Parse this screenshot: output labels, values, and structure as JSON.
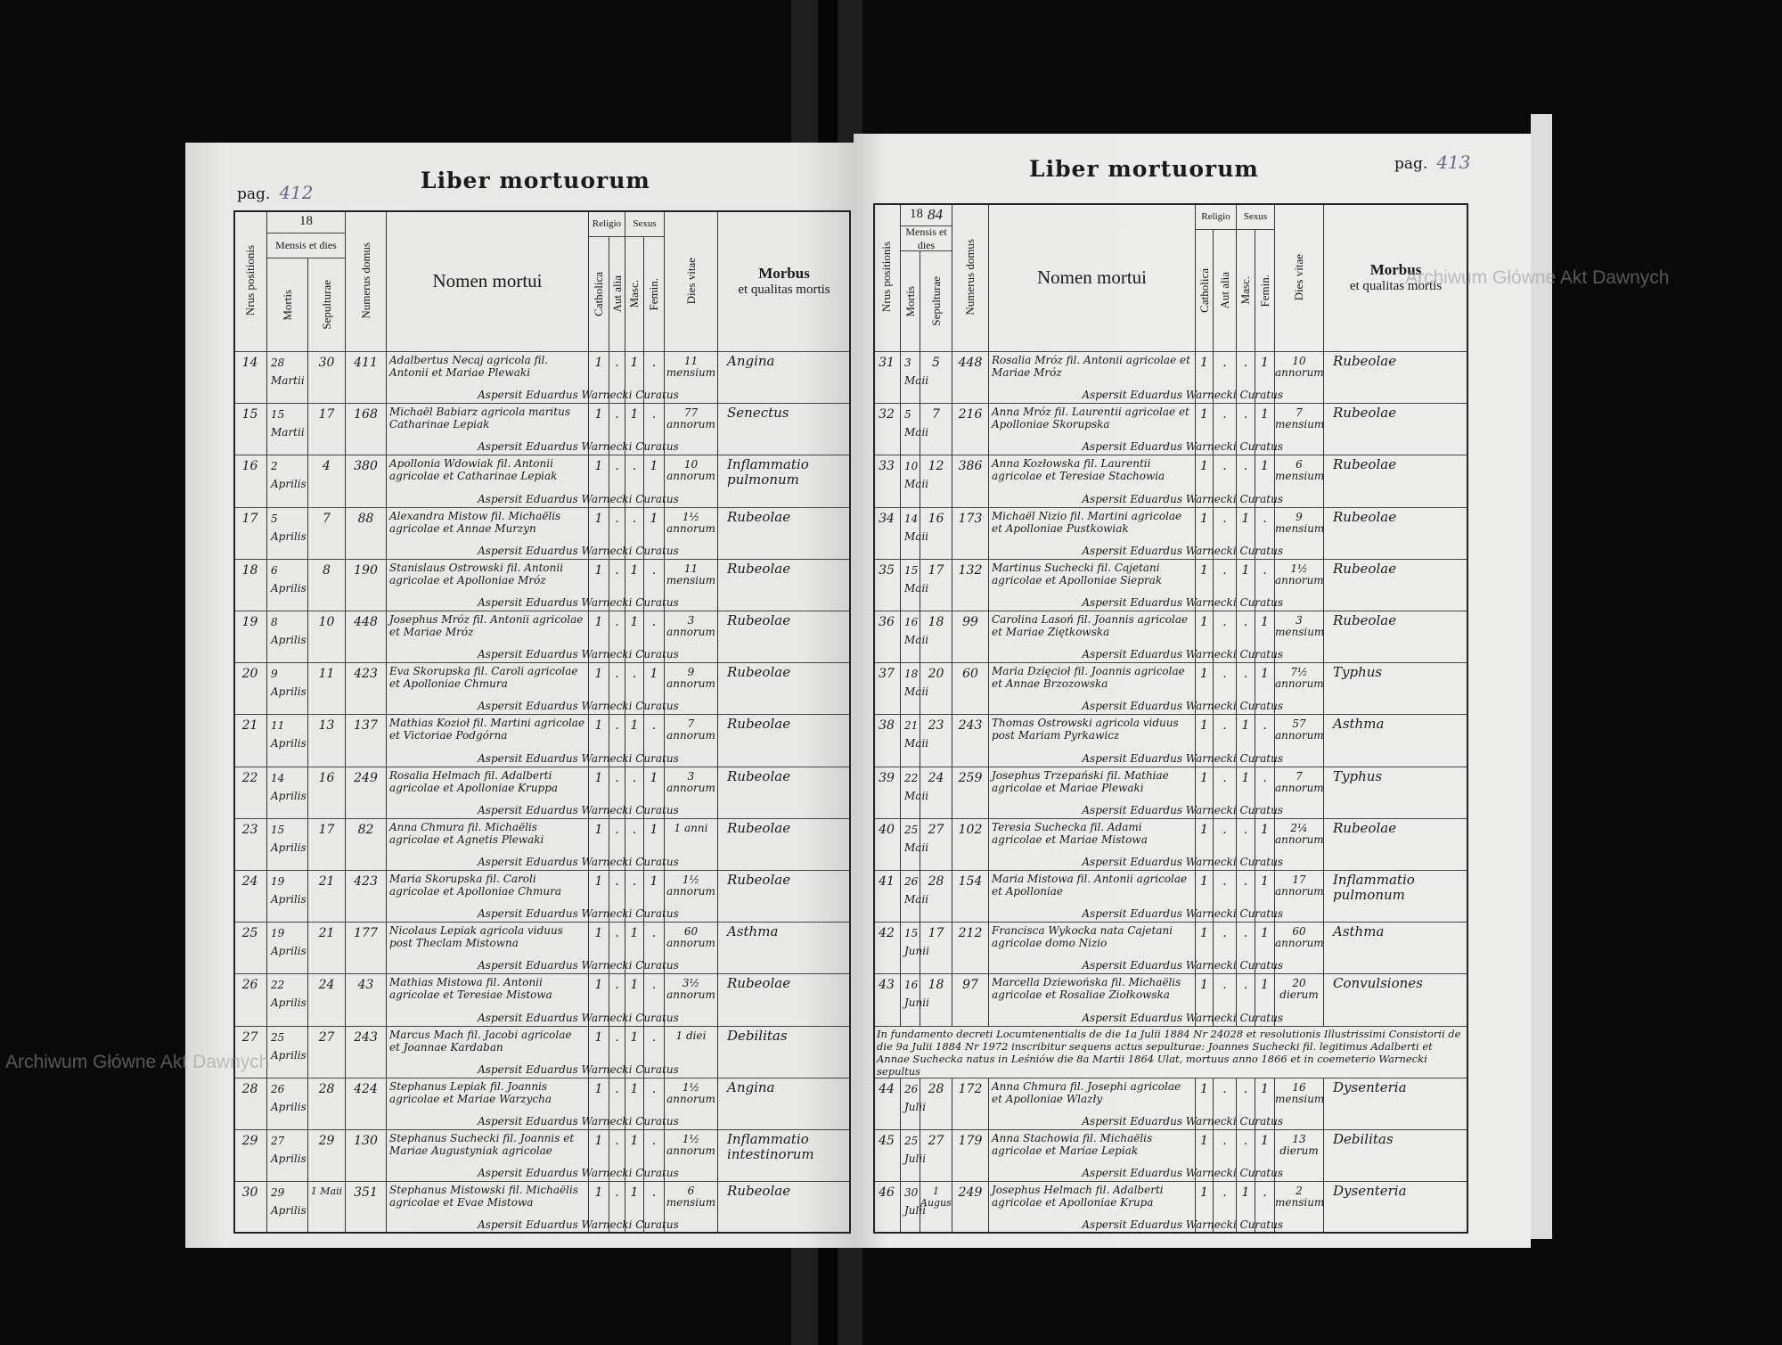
{
  "book_title": "Liber mortuorum",
  "left_page": {
    "pag_label": "pag.",
    "page_number": "412",
    "year_prefix": "18",
    "year_suffix": ""
  },
  "right_page": {
    "pag_label": "pag.",
    "page_number": "413",
    "year_prefix": "18",
    "year_suffix": "84"
  },
  "watermark": "Archiwum Główne Akt Dawnych",
  "headers": {
    "nrus": "Nrus positionis",
    "mensis": "Mensis et dies",
    "mortis": "Mortis",
    "sepulturae": "Sepulturae",
    "numerus": "Numerus domus",
    "nomen": "Nomen mortui",
    "religio": "Religio",
    "catholica": "Catholica",
    "aut_alia": "Aut alia",
    "sexus": "Sexus",
    "masc": "Masc.",
    "femin": "Femin.",
    "dies_vitae": "Dies vitae",
    "morbus": "Morbus",
    "morbus_sub": "et qualitas mortis"
  },
  "signature": "Aspersit Eduardus Warnecki Curatus",
  "left_rows": [
    {
      "nr": "14",
      "mortis": "28 Martii",
      "sep": "30",
      "domus": "411",
      "nomen": "Adalbertus Necaj agricola fil. Antonii et Mariae Plewaki",
      "cath": "1",
      "alia": ".",
      "masc": "1",
      "fem": ".",
      "dies": "11 mensium",
      "morbus": "Angina"
    },
    {
      "nr": "15",
      "mortis": "15 Martii",
      "sep": "17",
      "domus": "168",
      "nomen": "Michaël Babiarz agricola maritus Catharinae Lepiak",
      "cath": "1",
      "alia": ".",
      "masc": "1",
      "fem": ".",
      "dies": "77 annorum",
      "morbus": "Senectus"
    },
    {
      "nr": "16",
      "mortis": "2 Aprilis",
      "sep": "4",
      "domus": "380",
      "nomen": "Apollonia Wdowiak fil. Antonii agricolae et Catharinae Lepiak",
      "cath": "1",
      "alia": ".",
      "masc": ".",
      "fem": "1",
      "dies": "10 annorum",
      "morbus": "Inflammatio pulmonum"
    },
    {
      "nr": "17",
      "mortis": "5 Aprilis",
      "sep": "7",
      "domus": "88",
      "nomen": "Alexandra Mistow fil. Michaëlis agricolae et Annae Murzyn",
      "cath": "1",
      "alia": ".",
      "masc": ".",
      "fem": "1",
      "dies": "1½ annorum",
      "morbus": "Rubeolae"
    },
    {
      "nr": "18",
      "mortis": "6 Aprilis",
      "sep": "8",
      "domus": "190",
      "nomen": "Stanislaus Ostrowski fil. Antonii agricolae et Apolloniae Mróz",
      "cath": "1",
      "alia": ".",
      "masc": "1",
      "fem": ".",
      "dies": "11 mensium",
      "morbus": "Rubeolae"
    },
    {
      "nr": "19",
      "mortis": "8 Aprilis",
      "sep": "10",
      "domus": "448",
      "nomen": "Josephus Mróz fil. Antonii agricolae et Mariae Mróz",
      "cath": "1",
      "alia": ".",
      "masc": "1",
      "fem": ".",
      "dies": "3 annorum",
      "morbus": "Rubeolae"
    },
    {
      "nr": "20",
      "mortis": "9 Aprilis",
      "sep": "11",
      "domus": "423",
      "nomen": "Eva Skorupska fil. Caroli agricolae et Apolloniae Chmura",
      "cath": "1",
      "alia": ".",
      "masc": ".",
      "fem": "1",
      "dies": "9 annorum",
      "morbus": "Rubeolae"
    },
    {
      "nr": "21",
      "mortis": "11 Aprilis",
      "sep": "13",
      "domus": "137",
      "nomen": "Mathias Kozioł fil. Martini agricolae et Victoriae Podgórna",
      "cath": "1",
      "alia": ".",
      "masc": "1",
      "fem": ".",
      "dies": "7 annorum",
      "morbus": "Rubeolae"
    },
    {
      "nr": "22",
      "mortis": "14 Aprilis",
      "sep": "16",
      "domus": "249",
      "nomen": "Rosalia Helmach fil. Adalberti agricolae et Apolloniae Kruppa",
      "cath": "1",
      "alia": ".",
      "masc": ".",
      "fem": "1",
      "dies": "3 annorum",
      "morbus": "Rubeolae"
    },
    {
      "nr": "23",
      "mortis": "15 Aprilis",
      "sep": "17",
      "domus": "82",
      "nomen": "Anna Chmura fil. Michaëlis agricolae et Agnetis Plewaki",
      "cath": "1",
      "alia": ".",
      "masc": ".",
      "fem": "1",
      "dies": "1 anni",
      "morbus": "Rubeolae"
    },
    {
      "nr": "24",
      "mortis": "19 Aprilis",
      "sep": "21",
      "domus": "423",
      "nomen": "Maria Skorupska fil. Caroli agricolae et Apolloniae Chmura",
      "cath": "1",
      "alia": ".",
      "masc": ".",
      "fem": "1",
      "dies": "1½ annorum",
      "morbus": "Rubeolae"
    },
    {
      "nr": "25",
      "mortis": "19 Aprilis",
      "sep": "21",
      "domus": "177",
      "nomen": "Nicolaus Lepiak agricola viduus post Theclam Mistowna",
      "cath": "1",
      "alia": ".",
      "masc": "1",
      "fem": ".",
      "dies": "60 annorum",
      "morbus": "Asthma"
    },
    {
      "nr": "26",
      "mortis": "22 Aprilis",
      "sep": "24",
      "domus": "43",
      "nomen": "Mathias Mistowa fil. Antonii agricolae et Teresiae Mistowa",
      "cath": "1",
      "alia": ".",
      "masc": "1",
      "fem": ".",
      "dies": "3½ annorum",
      "morbus": "Rubeolae"
    },
    {
      "nr": "27",
      "mortis": "25 Aprilis",
      "sep": "27",
      "domus": "243",
      "nomen": "Marcus Mach fil. Jacobi agricolae et Joannae Kardaban",
      "cath": "1",
      "alia": ".",
      "masc": "1",
      "fem": ".",
      "dies": "1 diei",
      "morbus": "Debilitas"
    },
    {
      "nr": "28",
      "mortis": "26 Aprilis",
      "sep": "28",
      "domus": "424",
      "nomen": "Stephanus Lepiak fil. Joannis agricolae et Mariae Warzycha",
      "cath": "1",
      "alia": ".",
      "masc": "1",
      "fem": ".",
      "dies": "1½ annorum",
      "morbus": "Angina"
    },
    {
      "nr": "29",
      "mortis": "27 Aprilis",
      "sep": "29",
      "domus": "130",
      "nomen": "Stephanus Suchecki fil. Joannis et Mariae Augustyniak agricolae",
      "cath": "1",
      "alia": ".",
      "masc": "1",
      "fem": ".",
      "dies": "1½ annorum",
      "morbus": "Inflammatio intestinorum"
    },
    {
      "nr": "30",
      "mortis": "29 Aprilis",
      "sep": "1 Maii",
      "domus": "351",
      "nomen": "Stephanus Mistowski fil. Michaëlis agricolae et Evae Mistowa",
      "cath": "1",
      "alia": ".",
      "masc": "1",
      "fem": ".",
      "dies": "6 mensium",
      "morbus": "Rubeolae"
    }
  ],
  "right_rows": [
    {
      "nr": "31",
      "mortis": "3 Maii",
      "sep": "5",
      "domus": "448",
      "nomen": "Rosalia Mróz fil. Antonii agricolae et Mariae Mróz",
      "cath": "1",
      "alia": ".",
      "masc": ".",
      "fem": "1",
      "dies": "10 annorum",
      "morbus": "Rubeolae"
    },
    {
      "nr": "32",
      "mortis": "5 Maii",
      "sep": "7",
      "domus": "216",
      "nomen": "Anna Mróz fil. Laurentii agricolae et Apolloniae Skorupska",
      "cath": "1",
      "alia": ".",
      "masc": ".",
      "fem": "1",
      "dies": "7 mensium",
      "morbus": "Rubeolae"
    },
    {
      "nr": "33",
      "mortis": "10 Maii",
      "sep": "12",
      "domus": "386",
      "nomen": "Anna Kozłowska fil. Laurentii agricolae et Teresiae Stachowia",
      "cath": "1",
      "alia": ".",
      "masc": ".",
      "fem": "1",
      "dies": "6 mensium",
      "morbus": "Rubeolae"
    },
    {
      "nr": "34",
      "mortis": "14 Maii",
      "sep": "16",
      "domus": "173",
      "nomen": "Michaël Nizio fil. Martini agricolae et Apolloniae Pustkowiak",
      "cath": "1",
      "alia": ".",
      "masc": "1",
      "fem": ".",
      "dies": "9 mensium",
      "morbus": "Rubeolae"
    },
    {
      "nr": "35",
      "mortis": "15 Maii",
      "sep": "17",
      "domus": "132",
      "nomen": "Martinus Suchecki fil. Cajetani agricolae et Apolloniae Sieprak",
      "cath": "1",
      "alia": ".",
      "masc": "1",
      "fem": ".",
      "dies": "1½ annorum",
      "morbus": "Rubeolae"
    },
    {
      "nr": "36",
      "mortis": "16 Maii",
      "sep": "18",
      "domus": "99",
      "nomen": "Carolina Lasoń fil. Joannis agricolae et Mariae Ziętkowska",
      "cath": "1",
      "alia": ".",
      "masc": ".",
      "fem": "1",
      "dies": "3 mensium",
      "morbus": "Rubeolae"
    },
    {
      "nr": "37",
      "mortis": "18 Maii",
      "sep": "20",
      "domus": "60",
      "nomen": "Maria Dzięcioł fil. Joannis agricolae et Annae Brzozowska",
      "cath": "1",
      "alia": ".",
      "masc": ".",
      "fem": "1",
      "dies": "7½ annorum",
      "morbus": "Typhus"
    },
    {
      "nr": "38",
      "mortis": "21 Maii",
      "sep": "23",
      "domus": "243",
      "nomen": "Thomas Ostrowski agricola viduus post Mariam Pyrkawicz",
      "cath": "1",
      "alia": ".",
      "masc": "1",
      "fem": ".",
      "dies": "57 annorum",
      "morbus": "Asthma"
    },
    {
      "nr": "39",
      "mortis": "22 Maii",
      "sep": "24",
      "domus": "259",
      "nomen": "Josephus Trzepański fil. Mathiae agricolae et Mariae Plewaki",
      "cath": "1",
      "alia": ".",
      "masc": "1",
      "fem": ".",
      "dies": "7 annorum",
      "morbus": "Typhus"
    },
    {
      "nr": "40",
      "mortis": "25 Maii",
      "sep": "27",
      "domus": "102",
      "nomen": "Teresia Suchecka fil. Adami agricolae et Mariae Mistowa",
      "cath": "1",
      "alia": ".",
      "masc": ".",
      "fem": "1",
      "dies": "2¼ annorum",
      "morbus": "Rubeolae"
    },
    {
      "nr": "41",
      "mortis": "26 Maii",
      "sep": "28",
      "domus": "154",
      "nomen": "Maria Mistowa fil. Antonii agricolae et Apolloniae",
      "cath": "1",
      "alia": ".",
      "masc": ".",
      "fem": "1",
      "dies": "17 annorum",
      "morbus": "Inflammatio pulmonum"
    },
    {
      "nr": "42",
      "mortis": "15 Junii",
      "sep": "17",
      "domus": "212",
      "nomen": "Francisca Wykocka nata Cajetani agricolae domo Nizio",
      "cath": "1",
      "alia": ".",
      "masc": ".",
      "fem": "1",
      "dies": "60 annorum",
      "morbus": "Asthma"
    },
    {
      "nr": "43",
      "mortis": "16 Junii",
      "sep": "18",
      "domus": "97",
      "nomen": "Marcella Dziewońska fil. Michaëlis agricolae et Rosaliae Ziołkowska",
      "cath": "1",
      "alia": ".",
      "masc": ".",
      "fem": "1",
      "dies": "20 dierum",
      "morbus": "Convulsiones"
    },
    {
      "note": "In fundamento decreti Locumtenentialis de die 1a Julii 1884 Nr 24028 et resolutionis Illustrissimi Consistorii de die 9a Julii 1884 Nr 1972 inscribitur sequens actus sepulturae: Joannes Suchecki fil. legitimus Adalberti et Annae Suchecka natus in Leśniów die 8a Martii 1864 Ulat, mortuus anno 1866 et in coemeterio Warnecki sepultus"
    },
    {
      "nr": "44",
      "mortis": "26 Julii",
      "sep": "28",
      "domus": "172",
      "nomen": "Anna Chmura fil. Josephi agricolae et Apolloniae Wlazły",
      "cath": "1",
      "alia": ".",
      "masc": ".",
      "fem": "1",
      "dies": "16 mensium",
      "morbus": "Dysenteria"
    },
    {
      "nr": "45",
      "mortis": "25 Julii",
      "sep": "27",
      "domus": "179",
      "nomen": "Anna Stachowia fil. Michaëlis agricolae et Mariae Lepiak",
      "cath": "1",
      "alia": ".",
      "masc": ".",
      "fem": "1",
      "dies": "13 dierum",
      "morbus": "Debilitas"
    },
    {
      "nr": "46",
      "mortis": "30 Julii",
      "sep": "1 Augusti",
      "domus": "249",
      "nomen": "Josephus Helmach fil. Adalberti agricolae et Apolloniae Krupa",
      "cath": "1",
      "alia": ".",
      "masc": "1",
      "fem": ".",
      "dies": "2 mensium",
      "morbus": "Dysenteria"
    }
  ]
}
